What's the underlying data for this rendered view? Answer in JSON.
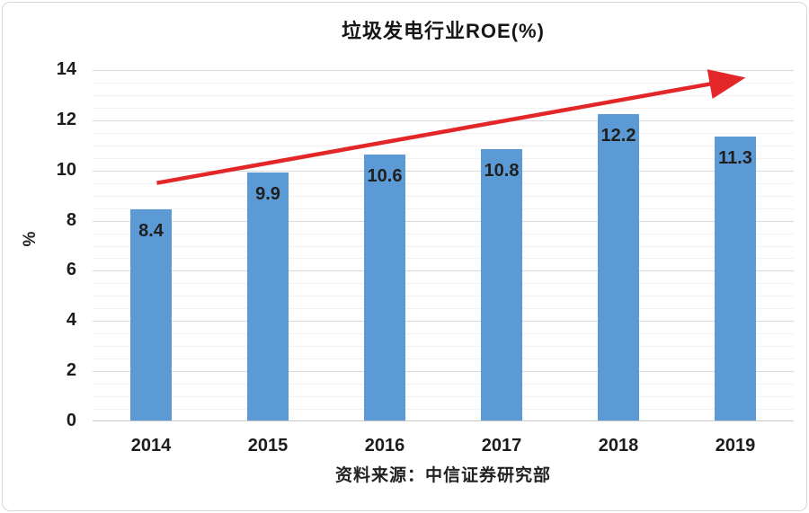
{
  "chart_data": {
    "type": "bar",
    "title": "垃圾发电行业ROE(%)",
    "categories": [
      "2014",
      "2015",
      "2016",
      "2017",
      "2018",
      "2019"
    ],
    "values": [
      8.4,
      9.9,
      10.6,
      10.8,
      12.2,
      11.3
    ],
    "xlabel": "",
    "ylabel": "%",
    "ylim": [
      0,
      14
    ],
    "y_ticks": [
      0,
      2,
      4,
      6,
      8,
      10,
      12,
      14
    ],
    "y_minor_step": 0.5,
    "grid": "on",
    "legend_position": "none",
    "data_label_position": "inside-end",
    "source_note": "资料来源：中信证券研究部",
    "annotation": {
      "type": "trend-arrow",
      "from": {
        "category_x": 0.55,
        "value": 9.5
      },
      "to": {
        "category_x": 5.35,
        "value": 13.5
      }
    },
    "colors": {
      "bar": "#5B9AD5",
      "label_text": "#1F1F1F",
      "grid_major": "#DADADA",
      "grid_minor": "#F3F1F2",
      "axis_line": "#C6C6C6",
      "trend_arrow": "#E32728",
      "background": "#FFFFFF",
      "card_border": "#D8D8D8"
    }
  }
}
